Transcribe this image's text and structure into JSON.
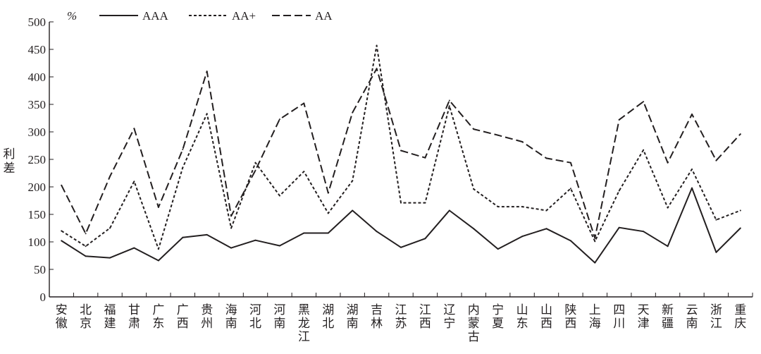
{
  "chart_data": {
    "type": "line",
    "title": "",
    "xlabel": "",
    "ylabel": "利差",
    "unit_label": "%",
    "ylim": [
      0,
      500
    ],
    "yticks": [
      0,
      50,
      100,
      150,
      200,
      250,
      300,
      350,
      400,
      450,
      500
    ],
    "grid": false,
    "legend_position": "top",
    "categories": [
      "安徽",
      "北京",
      "福建",
      "甘肃",
      "广东",
      "广西",
      "贵州",
      "海南",
      "河北",
      "河南",
      "黑龙江",
      "湖北",
      "湖南",
      "吉林",
      "江苏",
      "江西",
      "辽宁",
      "内蒙古",
      "宁夏",
      "山东",
      "山西",
      "陕西",
      "上海",
      "四川",
      "天津",
      "新疆",
      "云南",
      "浙江",
      "重庆"
    ],
    "series": [
      {
        "name": "AAA",
        "style": "solid",
        "values": [
          102,
          74,
          71,
          89,
          66,
          108,
          113,
          89,
          103,
          93,
          116,
          116,
          157,
          119,
          90,
          106,
          157,
          124,
          87,
          110,
          124,
          102,
          62,
          126,
          119,
          92,
          198,
          81,
          125
        ]
      },
      {
        "name": "AA+",
        "style": "dotted",
        "values": [
          120,
          92,
          125,
          210,
          87,
          235,
          333,
          125,
          244,
          184,
          228,
          152,
          211,
          457,
          171,
          171,
          347,
          196,
          164,
          164,
          157,
          197,
          101,
          193,
          267,
          162,
          232,
          140,
          157
        ]
      },
      {
        "name": "AA",
        "style": "dashed",
        "values": [
          203,
          115,
          219,
          306,
          163,
          268,
          410,
          147,
          230,
          323,
          352,
          189,
          335,
          415,
          266,
          253,
          357,
          305,
          294,
          282,
          252,
          244,
          107,
          322,
          355,
          244,
          332,
          248,
          296
        ]
      }
    ],
    "colors": {
      "line": "#231f20",
      "axis": "#231f20",
      "background": "#ffffff"
    }
  }
}
